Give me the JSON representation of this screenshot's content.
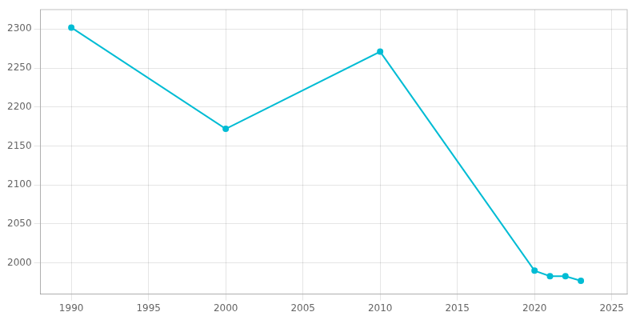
{
  "chart_data": {
    "type": "line",
    "x": [
      1990,
      2000,
      2010,
      2020,
      2021,
      2022,
      2023
    ],
    "values": [
      2302,
      2172,
      2271,
      1990,
      1983,
      1983,
      1977
    ],
    "color": "#00bcd4",
    "marker": "circle",
    "xlim": [
      1988,
      2026
    ],
    "xticks": [
      1990,
      1995,
      2000,
      2005,
      2010,
      2015,
      2020,
      2025
    ],
    "ylim": [
      1960,
      2325
    ],
    "yticks": [
      2000,
      2050,
      2100,
      2150,
      2200,
      2250,
      2300
    ],
    "grid": true
  }
}
